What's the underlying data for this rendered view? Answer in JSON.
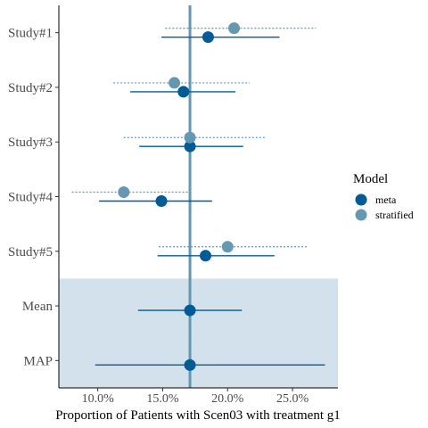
{
  "chart_data": {
    "type": "forest",
    "xlabel": "Proportion of Patients with Scen03 with treatment g1",
    "ylabel": "",
    "xlim": [
      0.07,
      0.285
    ],
    "x_ticks": [
      0.1,
      0.15,
      0.2,
      0.25
    ],
    "x_tick_labels": [
      "10.0%",
      "15.0%",
      "20.0%",
      "25.0%"
    ],
    "categories": [
      "Study#1",
      "Study#2",
      "Study#3",
      "Study#4",
      "Study#5",
      "Mean",
      "MAP"
    ],
    "shaded_categories": [
      "Mean",
      "MAP"
    ],
    "reference_line": 0.171,
    "legend": {
      "title": "Model",
      "entries": [
        "meta",
        "stratified"
      ],
      "placement": "right"
    },
    "series": [
      {
        "name": "meta",
        "color": "#005b96",
        "line_style": "solid",
        "points": [
          {
            "category": "Study#1",
            "estimate": 0.185,
            "lower": 0.149,
            "upper": 0.24
          },
          {
            "category": "Study#2",
            "estimate": 0.166,
            "lower": 0.125,
            "upper": 0.206
          },
          {
            "category": "Study#3",
            "estimate": 0.171,
            "lower": 0.132,
            "upper": 0.212
          },
          {
            "category": "Study#4",
            "estimate": 0.149,
            "lower": 0.101,
            "upper": 0.188
          },
          {
            "category": "Study#5",
            "estimate": 0.183,
            "lower": 0.146,
            "upper": 0.236
          },
          {
            "category": "Mean",
            "estimate": 0.171,
            "lower": 0.131,
            "upper": 0.211
          },
          {
            "category": "MAP",
            "estimate": 0.171,
            "lower": 0.098,
            "upper": 0.275
          }
        ]
      },
      {
        "name": "stratified",
        "color": "#6497b1",
        "line_style": "dotted",
        "points": [
          {
            "category": "Study#1",
            "estimate": 0.205,
            "lower": 0.152,
            "upper": 0.268
          },
          {
            "category": "Study#2",
            "estimate": 0.159,
            "lower": 0.112,
            "upper": 0.217
          },
          {
            "category": "Study#3",
            "estimate": 0.171,
            "lower": 0.12,
            "upper": 0.229
          },
          {
            "category": "Study#4",
            "estimate": 0.12,
            "lower": 0.08,
            "upper": 0.173
          },
          {
            "category": "Study#5",
            "estimate": 0.2,
            "lower": 0.147,
            "upper": 0.261
          }
        ]
      }
    ]
  }
}
